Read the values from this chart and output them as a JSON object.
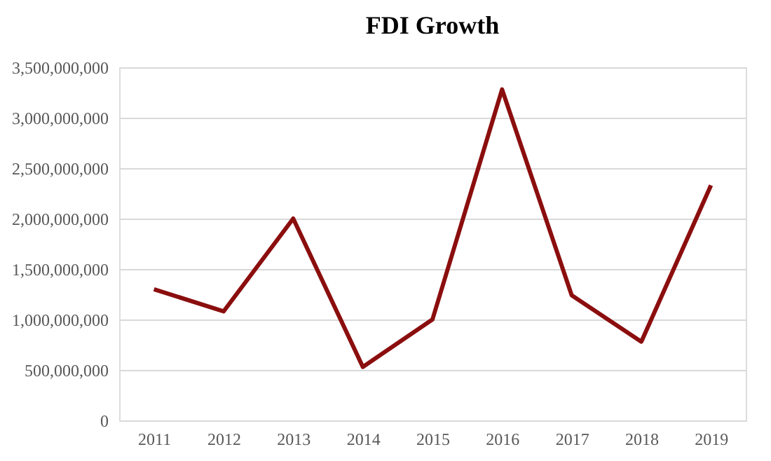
{
  "chart_data": {
    "type": "line",
    "title": "FDI Growth",
    "categories": [
      "2011",
      "2012",
      "2013",
      "2014",
      "2015",
      "2016",
      "2017",
      "2018",
      "2019"
    ],
    "series": [
      {
        "color": "#8b0e0e",
        "values": [
          1300000000,
          1080000000,
          2000000000,
          530000000,
          1000000000,
          3280000000,
          1240000000,
          780000000,
          2330000000
        ]
      }
    ],
    "ylim": [
      0,
      3500000000
    ],
    "yticks": [
      {
        "value": 0,
        "label": "0"
      },
      {
        "value": 500000000,
        "label": "500,000,000"
      },
      {
        "value": 1000000000,
        "label": "1,000,000,000"
      },
      {
        "value": 1500000000,
        "label": "1,500,000,000"
      },
      {
        "value": 2000000000,
        "label": "2,000,000,000"
      },
      {
        "value": 2500000000,
        "label": "2,500,000,000"
      },
      {
        "value": 3000000000,
        "label": "3,000,000,000"
      },
      {
        "value": 3500000000,
        "label": "3,500,000,000"
      }
    ],
    "grid": "y",
    "marker": "none",
    "line_style": "solid"
  }
}
